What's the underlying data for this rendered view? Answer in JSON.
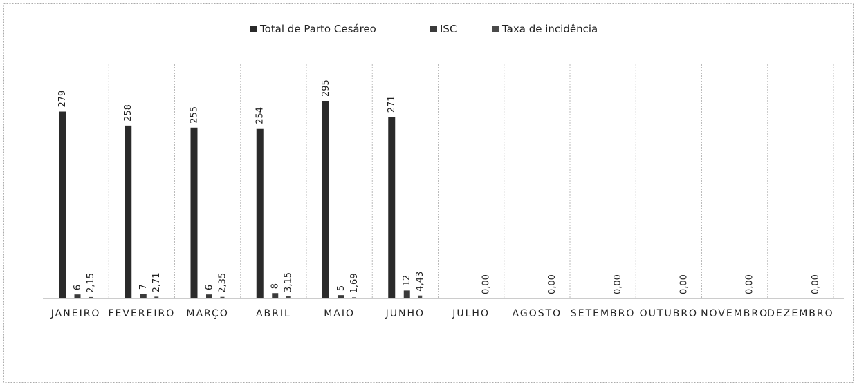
{
  "chart_data": {
    "type": "bar",
    "categories": [
      "JANEIRO",
      "FEVEREIRO",
      "MARÇO",
      "ABRIL",
      "MAIO",
      "JUNHO",
      "JULHO",
      "AGOSTO",
      "SETEMBRO",
      "OUTUBRO",
      "NOVEMBRO",
      "DEZEMBRO"
    ],
    "series": [
      {
        "name": "Total de Parto Cesáreo",
        "color": "#2a2a2a",
        "values": [
          279,
          258,
          255,
          254,
          295,
          271,
          null,
          null,
          null,
          null,
          null,
          null
        ]
      },
      {
        "name": "ISC",
        "color": "#3a3a3a",
        "values": [
          6,
          7,
          6,
          8,
          5,
          12,
          null,
          null,
          null,
          null,
          null,
          null
        ]
      },
      {
        "name": "Taxa de incidência",
        "color": "#4a4a4a",
        "values": [
          2.15,
          2.71,
          2.35,
          3.15,
          1.69,
          4.43,
          0,
          0,
          0,
          0,
          0,
          0
        ],
        "value_labels": [
          "2,15",
          "2,71",
          "2,35",
          "3,15",
          "1,69",
          "4,43",
          "0,00",
          "0,00",
          "0,00",
          "0,00",
          "0,00",
          "0,00"
        ]
      }
    ]
  }
}
